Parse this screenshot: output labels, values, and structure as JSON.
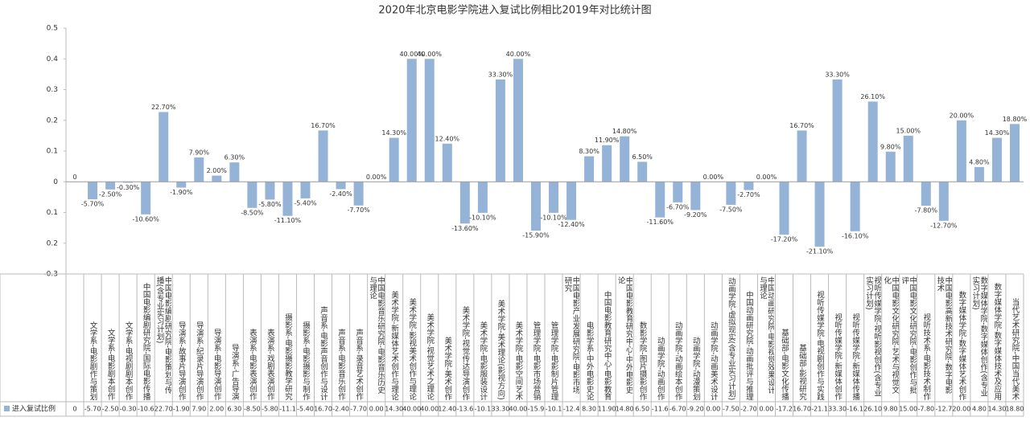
{
  "chart_data": {
    "type": "bar",
    "title": "2020年北京电影学院进入复试比例相比2019年对比统计图",
    "categories": [
      null,
      "文学系-电影剧作与策划",
      "文学系-电影剧本创作",
      "文学系-电视剧剧本创作",
      "中国电影编剧研究院-国际电影传播",
      "中国电影编剧研究院-电影策划与传播(含专业实习计划)",
      "导演系-故事片导演创作",
      "导演系-纪录片导演创作",
      "导演系-电影导演创作",
      "导演系-广告导演",
      "表演系-电影表演创作",
      "表演系-戏剧表演创作",
      "摄影系-电影摄影教学研究",
      "摄影系-电影摄影与制作",
      "声音系-电影声音创作与设计",
      "声音系-电影音乐创作",
      "声音系-录音艺术创作",
      "中国电影音乐研究院-电影音乐历史与理论",
      "美术学院-新媒体艺术创作与理论",
      "美术学院-影视美术创作与理论",
      "美术学院-视觉艺术之理论",
      "美术学院-美术创作",
      "美术学院-视觉传达导演创作",
      "美术学院-电影服装设计",
      "美术学院-美术理论(影视方向)",
      "美术学院-电影空间艺术",
      "管理学院-电影市场营销",
      "管理学院-电影制片管理",
      "中国电影产业发展研究院-电影市场研究",
      "电影学系-中外电影史论",
      "中国电影教育研究中心-电影教育",
      "中国电影教育研究中心-中外电影史论",
      "数影学院-图片摄影创作",
      "动画学院-动画创作",
      "动画学院-动画绘本创作",
      "动画学院-动漫策划",
      "动画学院-动画美术设计",
      "动画学院-虚拟现实(含专业实习计划)",
      "中国动画研究院-动画批评与推理",
      "中国动画研究院-电影视觉效果设计与理论",
      "基础部-电影文化传播",
      "基础部-影视研究",
      "视听传媒学院-电视剧创作与实践",
      "视听传媒学院-新媒体创作",
      "视听传媒学院-新媒体传播",
      "视听传媒学院-视听影视创作(含专业实习计划)",
      "中国电影文化研究院-艺术与视觉文化",
      "中国电影文化研究院-电影创作与批评",
      "视听技术系-电影技术制作",
      "中国电影高新技术研究院-数字电影技术",
      "数字媒体学院-数字媒体艺术创作",
      "数字媒体学院-数字媒体创作(含专业实习计划)",
      "数字媒体学院-数字媒体技术及应用",
      "当代艺术研究院-中国当代美术"
    ],
    "series": [
      {
        "name": "进入复试比例",
        "color": "#95b3d7",
        "values": [
          0,
          -0.057,
          -0.025,
          -0.003,
          -0.106,
          0.227,
          -0.019,
          0.079,
          0.02,
          0.063,
          -0.085,
          -0.058,
          -0.111,
          -0.054,
          0.167,
          -0.024,
          -0.077,
          0,
          0.143,
          0.4,
          0.4,
          0.124,
          -0.136,
          -0.101,
          0.333,
          0.4,
          -0.159,
          -0.101,
          -0.124,
          0.083,
          0.119,
          0.148,
          0.065,
          -0.116,
          -0.067,
          -0.092,
          0,
          -0.075,
          -0.027,
          0,
          -0.172,
          0.167,
          -0.211,
          0.333,
          -0.161,
          0.261,
          0.098,
          0.15,
          -0.078,
          -0.127,
          0.2,
          0.048,
          0.143,
          0.188
        ],
        "value_labels": [
          "0",
          "-5.70%",
          "-2.50%",
          "-0.30%",
          "-10.60%",
          "22.70%",
          "-1.90%",
          "7.90%",
          "2.00%",
          "6.30%",
          "-8.50%",
          "-5.80%",
          "-11.10%",
          "-5.40%",
          "16.70%",
          "-2.40%",
          "-7.70%",
          "0.00%",
          "14.30%",
          "40.00%",
          "40.00%",
          "12.40%",
          "-13.60%",
          "-10.10%",
          "33.30%",
          "40.00%",
          "-15.90%",
          "-10.10%",
          "-12.40%",
          "8.30%",
          "11.90%",
          "14.80%",
          "6.50%",
          "-11.60%",
          "-6.70%",
          "-9.20%",
          "0.00%",
          "-7.50%",
          "-2.70%",
          "0.00%",
          "-17.20%",
          "16.70%",
          "-21.10%",
          "33.30%",
          "-16.10%",
          "26.10%",
          "9.80%",
          "15.00%",
          "-7.80%",
          "-12.70%",
          "20.00%",
          "4.80%",
          "14.30%",
          "18.80%"
        ],
        "table_labels": [
          "0",
          "-5.70",
          "-2.50",
          "-0.30",
          "-10.6",
          "22.70",
          "-1.90",
          "7.90",
          "2.00",
          "6.30",
          "-8.50",
          "-5.80",
          "-11.1",
          "-5.40",
          "16.70",
          "-2.40",
          "-7.70",
          "0.00",
          "14.30",
          "40.00",
          "40.00",
          "12.40",
          "-13.6",
          "-10.1",
          "33.30",
          "40.00",
          "-15.9",
          "-10.1",
          "-12.4",
          "8.30",
          "11.90",
          "14.80",
          "6.50",
          "-11.6",
          "-6.70",
          "-9.20",
          "0.00",
          "-7.50",
          "-2.70",
          "0.00",
          "-17.2",
          "16.70",
          "-21.1",
          "33.30",
          "-16.1",
          "26.10",
          "9.80",
          "15.00",
          "-7.80",
          "-12.7",
          "20.00",
          "4.80",
          "14.30",
          "18.80"
        ]
      }
    ],
    "ylim": [
      -0.3,
      0.5
    ],
    "yticks": [
      -0.3,
      {
        "value": -0.2,
        "label": "0.2"
      },
      {
        "value": -0.1,
        "label": "0.1"
      },
      0,
      0.1,
      0.2,
      0.3,
      0.4,
      0.5
    ]
  }
}
